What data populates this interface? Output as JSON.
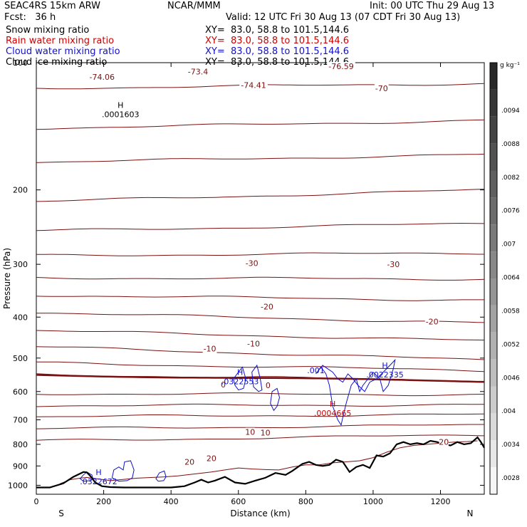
{
  "header": {
    "model": "SEAC4RS 15km ARW",
    "center": "NCAR/MMM",
    "init": "Init: 00 UTC Thu 29 Aug 13",
    "fcst": "Fcst:   36 h",
    "valid": "Valid: 12 UTC Fri 30 Aug 13 (07 CDT Fri 30 Aug 13)",
    "fields": [
      {
        "name": "Snow mixing ratio",
        "xy": "XY=  83.0, 58.8 to 101.5,144.6",
        "color": "#000000"
      },
      {
        "name": "Rain water mixing ratio",
        "xy": "XY=  83.0, 58.8 to 101.5,144.6",
        "color": "#d00000"
      },
      {
        "name": "Cloud water mixing ratio",
        "xy": "XY=  83.0, 58.8 to 101.5,144.6",
        "color": "#1010d0"
      },
      {
        "name": "Cloud ice mixing ratio",
        "xy": "XY=  83.0, 58.8 to 101.5,144.6",
        "color": "#000000"
      }
    ]
  },
  "colors": {
    "temperature_contour": "#7a1010",
    "rain": "#d00000",
    "cloud": "#1010d0",
    "terrain": "#000000"
  },
  "chart_data": {
    "type": "line",
    "xlabel": "Distance (km)",
    "ylabel": "Pressure (hPa)",
    "xlim": [
      0,
      1330
    ],
    "ylim": [
      1050,
      100
    ],
    "x_ticks": [
      0,
      200,
      400,
      600,
      800,
      1000,
      1200
    ],
    "y_ticks": [
      200,
      300,
      400,
      500,
      600,
      700,
      800,
      900,
      1000
    ],
    "y_tick_labels": [
      "200",
      "300",
      "400",
      "500",
      "600",
      "700",
      "800",
      "900",
      "1000"
    ],
    "y_top_label": "100",
    "end_labels": {
      "left": "S",
      "right": "N"
    },
    "colorbar": {
      "unit": "g kg⁻¹",
      "labels": [
        ".0094",
        ".0088",
        ".0082",
        ".0076",
        ".007",
        ".0064",
        ".0058",
        ".0052",
        ".0046",
        ".004",
        ".0034",
        ".0028"
      ]
    },
    "isotherm_labels": [
      {
        "text": "-74.06",
        "x": 195,
        "p": 108
      },
      {
        "text": "-73.4",
        "x": 480,
        "p": 105
      },
      {
        "text": "-74.41",
        "x": 645,
        "p": 113
      },
      {
        "text": "-76.59",
        "x": 905,
        "p": 102
      },
      {
        "text": "-70",
        "x": 1025,
        "p": 115
      },
      {
        "text": "-30",
        "x": 640,
        "p": 298
      },
      {
        "text": "-30",
        "x": 1060,
        "p": 300
      },
      {
        "text": "-20",
        "x": 685,
        "p": 378
      },
      {
        "text": "-20",
        "x": 1175,
        "p": 410
      },
      {
        "text": "-10",
        "x": 515,
        "p": 475
      },
      {
        "text": "-10",
        "x": 645,
        "p": 462
      },
      {
        "text": "0",
        "x": 555,
        "p": 578
      },
      {
        "text": "0",
        "x": 688,
        "p": 580
      },
      {
        "text": "10",
        "x": 635,
        "p": 748
      },
      {
        "text": "10",
        "x": 680,
        "p": 750
      },
      {
        "text": "20",
        "x": 520,
        "p": 863
      },
      {
        "text": "20",
        "x": 455,
        "p": 880
      },
      {
        "text": "20",
        "x": 1210,
        "p": 790
      }
    ],
    "isotherm_level_units": [
      {
        "p_left": 115,
        "p_right": 112
      },
      {
        "p_left": 143,
        "p_right": 137
      },
      {
        "p_left": 172,
        "p_right": 165
      },
      {
        "p_left": 213,
        "p_right": 200
      },
      {
        "p_left": 250,
        "p_right": 240
      },
      {
        "p_left": 286,
        "p_right": 282
      },
      {
        "p_left": 323,
        "p_right": 325
      },
      {
        "p_left": 355,
        "p_right": 365
      },
      {
        "p_left": 390,
        "p_right": 413
      },
      {
        "p_left": 430,
        "p_right": 455
      },
      {
        "p_left": 470,
        "p_right": 505
      },
      {
        "p_left": 513,
        "p_right": 535
      },
      {
        "p_left": 547,
        "p_right": 565
      },
      {
        "p_left": 607,
        "p_right": 610
      },
      {
        "p_left": 648,
        "p_right": 645
      },
      {
        "p_left": 688,
        "p_right": 680
      },
      {
        "p_left": 735,
        "p_right": 720
      },
      {
        "p_left": 785,
        "p_right": 760
      }
    ],
    "freezing_level": {
      "p_left": 548,
      "p_right": 568
    },
    "extrema_labels": [
      {
        "letter": "H",
        "value": ".0001603",
        "x": 250,
        "p": 132,
        "color": "#000000"
      },
      {
        "letter": "H",
        "value": ".0322553",
        "x": 605,
        "p": 565,
        "color": "#1010d0"
      },
      {
        "letter": "H",
        "value": ".0004665",
        "x": 880,
        "p": 672,
        "color": "#d00000"
      },
      {
        "letter": "H",
        "value": ".0022335",
        "x": 1035,
        "p": 545,
        "color": "#1010d0"
      },
      {
        "letter": "H",
        "value": ".0322672",
        "x": 185,
        "p": 975,
        "color": "#1010d0"
      }
    ],
    "cloud_value_label": {
      "text": ".001",
      "x": 830,
      "p": 543
    },
    "terrain": {
      "x": [
        0,
        40,
        80,
        110,
        140,
        150,
        160,
        175,
        195,
        220,
        260,
        300,
        360,
        400,
        440,
        470,
        490,
        510,
        530,
        560,
        590,
        620,
        650,
        680,
        710,
        740,
        760,
        790,
        810,
        830,
        850,
        870,
        890,
        910,
        930,
        950,
        970,
        990,
        1010,
        1030,
        1050,
        1070,
        1090,
        1110,
        1130,
        1150,
        1170,
        1190,
        1210,
        1230,
        1250,
        1270,
        1290,
        1310,
        1320,
        1330
      ],
      "p": [
        1012,
        1012,
        990,
        955,
        930,
        932,
        950,
        985,
        1005,
        1010,
        1012,
        1012,
        1012,
        1012,
        1005,
        985,
        970,
        985,
        975,
        955,
        985,
        992,
        975,
        960,
        935,
        945,
        925,
        890,
        880,
        895,
        900,
        895,
        870,
        880,
        930,
        905,
        895,
        910,
        850,
        855,
        840,
        800,
        790,
        800,
        795,
        800,
        785,
        790,
        800,
        805,
        790,
        800,
        795,
        770,
        790,
        815
      ]
    },
    "rain_contour": {
      "x": [
        70,
        100,
        130,
        150,
        180,
        220,
        300,
        380,
        420,
        470,
        520,
        560,
        600,
        640,
        680,
        720,
        760,
        800,
        840,
        880,
        920,
        960,
        1000,
        1040,
        1080,
        1120,
        1160,
        1200,
        1240,
        1280,
        1310
      ],
      "p": [
        992,
        970,
        962,
        958,
        965,
        975,
        962,
        955,
        950,
        940,
        930,
        920,
        910,
        915,
        918,
        920,
        905,
        895,
        895,
        885,
        880,
        875,
        860,
        835,
        815,
        805,
        800,
        795,
        790,
        788,
        785
      ]
    }
  }
}
